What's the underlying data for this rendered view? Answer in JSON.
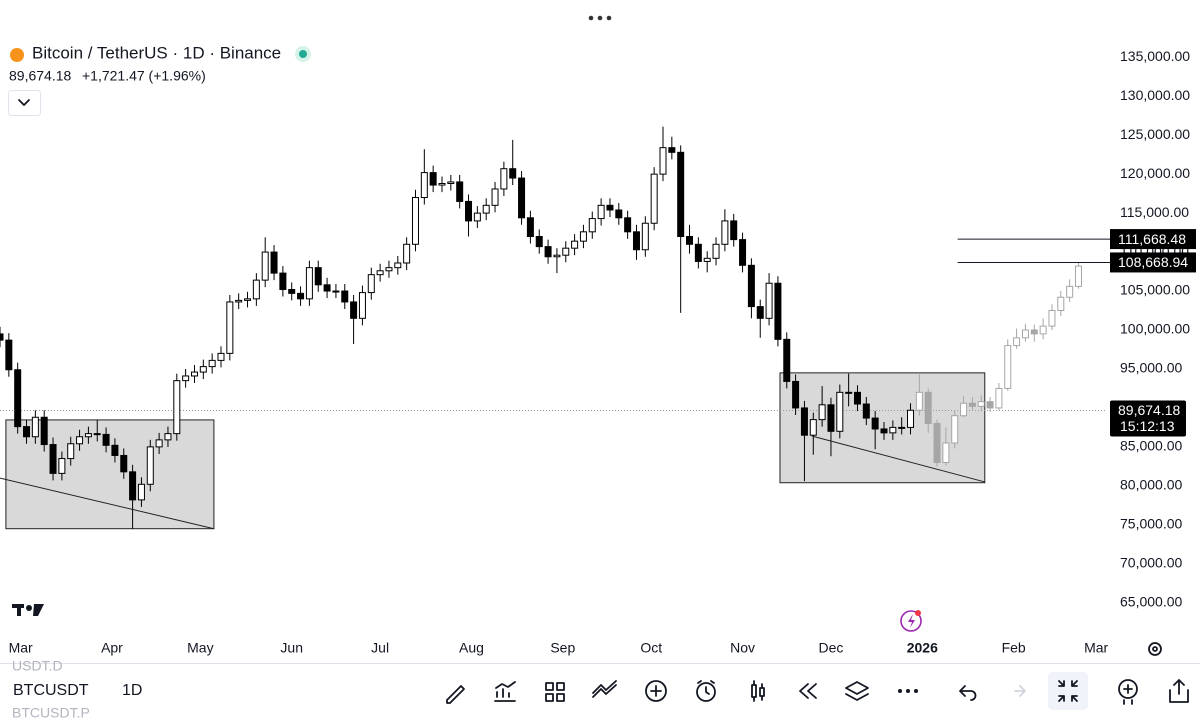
{
  "header": {
    "symbol_title": "Bitcoin / TetherUS · 1D · Binance",
    "price": "89,674.18",
    "change": "+1,721.47 (+1.96%)"
  },
  "chart_data": {
    "type": "candlestick",
    "xlim": [
      0,
      375
    ],
    "ylim": [
      61500,
      138500
    ],
    "xticks": [
      {
        "value": 7,
        "label": "Mar"
      },
      {
        "value": 38,
        "label": "Apr"
      },
      {
        "value": 68,
        "label": "May"
      },
      {
        "value": 99,
        "label": "Jun"
      },
      {
        "value": 129,
        "label": "Jul"
      },
      {
        "value": 160,
        "label": "Aug"
      },
      {
        "value": 191,
        "label": "Sep"
      },
      {
        "value": 221,
        "label": "Oct"
      },
      {
        "value": 252,
        "label": "Nov"
      },
      {
        "value": 282,
        "label": "Dec"
      },
      {
        "value": 313,
        "label": "2026"
      },
      {
        "value": 344,
        "label": "Feb"
      },
      {
        "value": 372,
        "label": "Mar"
      }
    ],
    "yticks": [
      {
        "value": 65000,
        "label": "65,000.00"
      },
      {
        "value": 70000,
        "label": "70,000.00"
      },
      {
        "value": 75000,
        "label": "75,000.00"
      },
      {
        "value": 80000,
        "label": "80,000.00"
      },
      {
        "value": 85000,
        "label": "85,000.00"
      },
      {
        "value": 90000,
        "label": "90,000.00"
      },
      {
        "value": 95000,
        "label": "95,000.00"
      },
      {
        "value": 100000,
        "label": "100,000.00"
      },
      {
        "value": 105000,
        "label": "105,000.00"
      },
      {
        "value": 110000,
        "label": "110,000.00"
      },
      {
        "value": 115000,
        "label": "115,000.00"
      },
      {
        "value": 120000,
        "label": "120,000.00"
      },
      {
        "value": 125000,
        "label": "125,000.00"
      },
      {
        "value": 130000,
        "label": "130,000.00"
      },
      {
        "value": 135000,
        "label": "135,000.00"
      }
    ],
    "series": [
      {
        "color": "#000000",
        "x": [
          0,
          3,
          6,
          9,
          12,
          15,
          18,
          21,
          24,
          27,
          30,
          33,
          36,
          39,
          42,
          45,
          48,
          51,
          54,
          57,
          60,
          63,
          66,
          69,
          72,
          75,
          78,
          81,
          84,
          87,
          90,
          93,
          96,
          99,
          102,
          105,
          108,
          111,
          114,
          117,
          120,
          123,
          126,
          129,
          132,
          135,
          138,
          141,
          144,
          147,
          150,
          153,
          156,
          159,
          162,
          165,
          168,
          171,
          174,
          177,
          180,
          183,
          186,
          189,
          192,
          195,
          198,
          201,
          204,
          207,
          210,
          213,
          216,
          219,
          222,
          225,
          228,
          231,
          234,
          237,
          240,
          243,
          246,
          249,
          252,
          255,
          258,
          261,
          264,
          267,
          270,
          273,
          276,
          279,
          282,
          285,
          288,
          291,
          294,
          297,
          300,
          303,
          306,
          309
        ],
        "open": [
          99500,
          98700,
          94900,
          87600,
          86300,
          88800,
          85300,
          81600,
          83500,
          85400,
          86300,
          86700,
          86600,
          85200,
          83900,
          81800,
          78200,
          80200,
          85000,
          85900,
          86700,
          93500,
          94100,
          94600,
          95300,
          96100,
          97000,
          103600,
          103800,
          104000,
          106400,
          110000,
          107300,
          105200,
          104700,
          104000,
          108000,
          105800,
          105000,
          105000,
          103600,
          101500,
          104800,
          107100,
          107600,
          108000,
          108600,
          111000,
          117000,
          120200,
          118600,
          118800,
          119000,
          116500,
          114000,
          115000,
          116000,
          118100,
          120700,
          119500,
          114400,
          112000,
          110700,
          109400,
          109600,
          110500,
          111400,
          112600,
          114300,
          116000,
          115400,
          114400,
          112600,
          110300,
          113700,
          120000,
          123400,
          122800,
          112000,
          111000,
          108800,
          109200,
          111000,
          114000,
          111600,
          108300,
          103000,
          101500,
          106000,
          98800,
          93400,
          90000,
          86500,
          88500,
          90400,
          87000,
          92000,
          92000,
          90500,
          88700,
          87300,
          86800,
          87500,
          87500
        ],
        "high": [
          100400,
          99600,
          95800,
          88500,
          89700,
          89700,
          86200,
          84400,
          86300,
          87200,
          87600,
          88500,
          87500,
          86100,
          84800,
          82700,
          81100,
          85900,
          86800,
          87600,
          94400,
          95000,
          95500,
          96200,
          97000,
          97900,
          104500,
          104700,
          104900,
          107300,
          111900,
          110900,
          108200,
          106100,
          105600,
          108900,
          108900,
          106700,
          105900,
          105900,
          104500,
          105700,
          108000,
          108500,
          108900,
          109500,
          111900,
          118000,
          123200,
          121100,
          119700,
          119900,
          119900,
          117400,
          115900,
          116900,
          119000,
          121600,
          124400,
          120400,
          115300,
          112900,
          111600,
          110500,
          111400,
          112300,
          113500,
          115200,
          116900,
          116900,
          116300,
          115300,
          113500,
          114600,
          120900,
          126100,
          124800,
          123700,
          113500,
          111900,
          110100,
          111900,
          115500,
          114900,
          112500,
          109200,
          103900,
          107300,
          106900,
          99700,
          94300,
          90900,
          89400,
          92800,
          91300,
          93000,
          94400,
          92900,
          91400,
          89600,
          88200,
          88400,
          88800,
          90600
        ],
        "low": [
          97800,
          94000,
          86700,
          85400,
          85400,
          84400,
          80700,
          80700,
          82600,
          84500,
          85400,
          85700,
          84300,
          83000,
          80900,
          74500,
          77300,
          79300,
          84100,
          85000,
          85800,
          92600,
          93200,
          93700,
          94400,
          95200,
          96100,
          102700,
          102900,
          103100,
          105500,
          106400,
          104300,
          103800,
          103100,
          103100,
          104900,
          104100,
          104100,
          102700,
          98200,
          100600,
          103900,
          106200,
          106700,
          107100,
          107700,
          110100,
          116100,
          117700,
          117700,
          117900,
          115600,
          112000,
          113100,
          114100,
          115100,
          117200,
          118600,
          113500,
          111100,
          109800,
          108500,
          107300,
          108700,
          109600,
          110500,
          111700,
          113400,
          114500,
          113500,
          111700,
          109000,
          109400,
          112800,
          119100,
          121900,
          102200,
          109800,
          107900,
          107400,
          108300,
          110100,
          110700,
          107400,
          101500,
          99000,
          100600,
          97900,
          92500,
          89100,
          80600,
          84000,
          87600,
          83800,
          86100,
          90200,
          89600,
          87800,
          84700,
          85900,
          85900,
          86600,
          86600
        ],
        "close": [
          98700,
          94900,
          87600,
          86300,
          88800,
          85300,
          81600,
          83500,
          85400,
          86300,
          86700,
          86600,
          85200,
          83900,
          81800,
          78200,
          80200,
          85000,
          85900,
          86700,
          93500,
          94100,
          94600,
          95300,
          96100,
          97000,
          103600,
          103800,
          104000,
          106400,
          110000,
          107300,
          105200,
          104700,
          104000,
          108000,
          105800,
          105000,
          105000,
          103600,
          101500,
          104800,
          107100,
          107600,
          108000,
          108600,
          111000,
          117000,
          120200,
          118600,
          118800,
          119000,
          116500,
          114000,
          115000,
          116000,
          118100,
          120700,
          119500,
          114400,
          112000,
          110700,
          109400,
          109600,
          110500,
          111400,
          112600,
          114300,
          116000,
          115400,
          114400,
          112600,
          110300,
          113700,
          120000,
          123400,
          122800,
          112000,
          111000,
          108800,
          109200,
          111000,
          114000,
          111600,
          108300,
          103000,
          101500,
          106000,
          98800,
          93400,
          90000,
          86500,
          88500,
          90400,
          87000,
          92000,
          92000,
          90500,
          88700,
          87300,
          86800,
          87500,
          87500,
          89700
        ]
      },
      {
        "color": "#a6a6a6",
        "x": [
          312,
          315,
          318,
          321,
          324,
          327,
          330,
          333,
          336,
          339,
          342,
          345,
          348,
          351,
          354,
          357,
          360,
          363,
          366
        ],
        "open": [
          89700,
          92000,
          88000,
          83000,
          85500,
          89000,
          90600,
          90200,
          90800,
          90000,
          92500,
          98000,
          99000,
          100000,
          99500,
          100500,
          102500,
          104200,
          105600
        ],
        "high": [
          94300,
          92500,
          88500,
          87500,
          89700,
          91500,
          91400,
          91600,
          91400,
          93200,
          98800,
          100200,
          100800,
          100700,
          101500,
          103300,
          105000,
          106500,
          108700
        ],
        "low": [
          89000,
          86800,
          82500,
          82600,
          84800,
          88800,
          89700,
          89700,
          89500,
          89700,
          92200,
          97600,
          98500,
          98500,
          98800,
          100000,
          101800,
          103600,
          105300
        ],
        "close": [
          92000,
          88000,
          83000,
          85500,
          89000,
          90600,
          90200,
          90800,
          90000,
          92500,
          98000,
          99000,
          100000,
          99500,
          100500,
          102500,
          104200,
          105600,
          108200
        ]
      }
    ],
    "drawings": [
      {
        "type": "rect",
        "x": [
          2,
          72.6
        ],
        "y": [
          74500,
          88460
        ]
      },
      {
        "type": "line",
        "x": [
          0,
          72.6
        ],
        "y": [
          81000,
          74500
        ]
      },
      {
        "type": "rect",
        "x": [
          264.7,
          334.2
        ],
        "y": [
          80400,
          94500
        ]
      },
      {
        "type": "line",
        "x": [
          275.5,
          334.2
        ],
        "y": [
          86400,
          80500
        ]
      }
    ],
    "levels": [
      {
        "value": 111668.48,
        "label": "111,668.48",
        "from_x": 325
      },
      {
        "value": 108668.94,
        "label": "108,668.94",
        "from_x": 325
      }
    ],
    "last": {
      "value": 89674.18,
      "label": "89,674.18",
      "countdown": "15:12:13"
    }
  },
  "toolbar": {
    "symbol": "BTCUSDT",
    "interval": "1D",
    "above": "USDT.D",
    "below": "BTCUSDT.P"
  }
}
